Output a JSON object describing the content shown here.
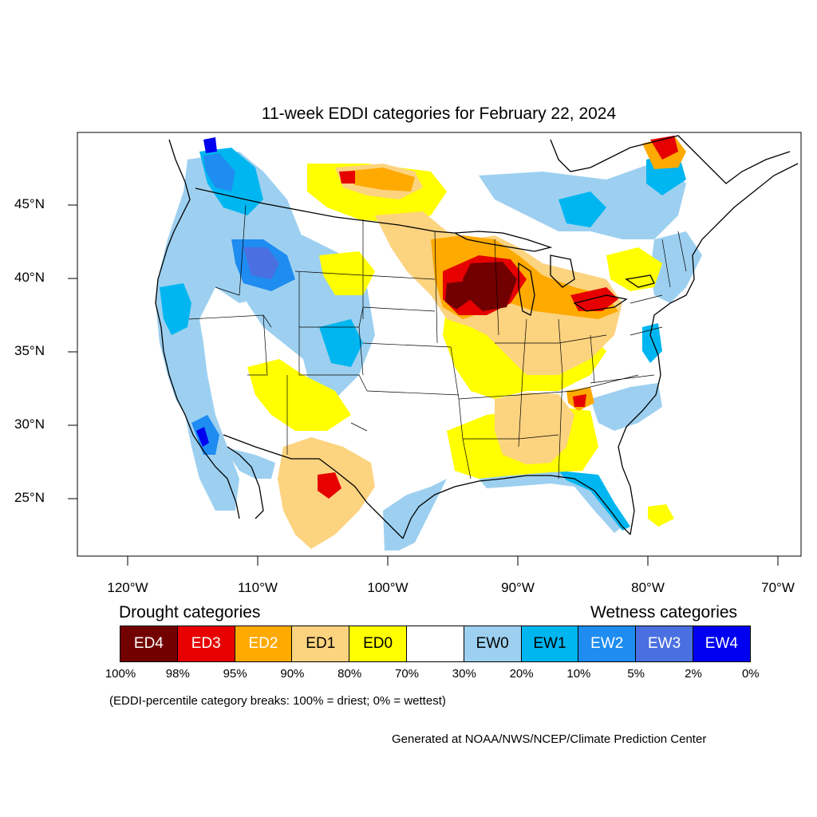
{
  "title": "11-week EDDI categories for February 22, 2024",
  "lat_labels": [
    "45°N",
    "40°N",
    "35°N",
    "30°N",
    "25°N"
  ],
  "lon_labels": [
    "120°W",
    "110°W",
    "100°W",
    "90°W",
    "80°W",
    "70°W"
  ],
  "legend": {
    "drought_heading": "Drought categories",
    "wetness_heading": "Wetness categories",
    "categories": [
      {
        "label": "ED4",
        "color": "#730000",
        "text_color": "#ffffff"
      },
      {
        "label": "ED3",
        "color": "#e60000",
        "text_color": "#ffffff"
      },
      {
        "label": "ED2",
        "color": "#ffaa00",
        "text_color": "#ffffff"
      },
      {
        "label": "ED1",
        "color": "#fcd37f",
        "text_color": "#000000"
      },
      {
        "label": "ED0",
        "color": "#ffff00",
        "text_color": "#000000"
      },
      {
        "label": "",
        "color": "#ffffff",
        "text_color": "#000000"
      },
      {
        "label": "EW0",
        "color": "#9dd0f0",
        "text_color": "#000000"
      },
      {
        "label": "EW1",
        "color": "#00b6f0",
        "text_color": "#000000"
      },
      {
        "label": "EW2",
        "color": "#1e8cf0",
        "text_color": "#ffffff"
      },
      {
        "label": "EW3",
        "color": "#4a6fe0",
        "text_color": "#ffffff"
      },
      {
        "label": "EW4",
        "color": "#0000f0",
        "text_color": "#ffffff"
      }
    ],
    "percentiles": [
      "100%",
      "98%",
      "95%",
      "90%",
      "80%",
      "70%",
      "30%",
      "20%",
      "10%",
      "5%",
      "2%",
      "0%"
    ]
  },
  "note": "(EDDI-percentile category breaks: 100% = driest; 0% = wettest)",
  "credit": "Generated at NOAA/NWS/NCEP/Climate Prediction Center"
}
